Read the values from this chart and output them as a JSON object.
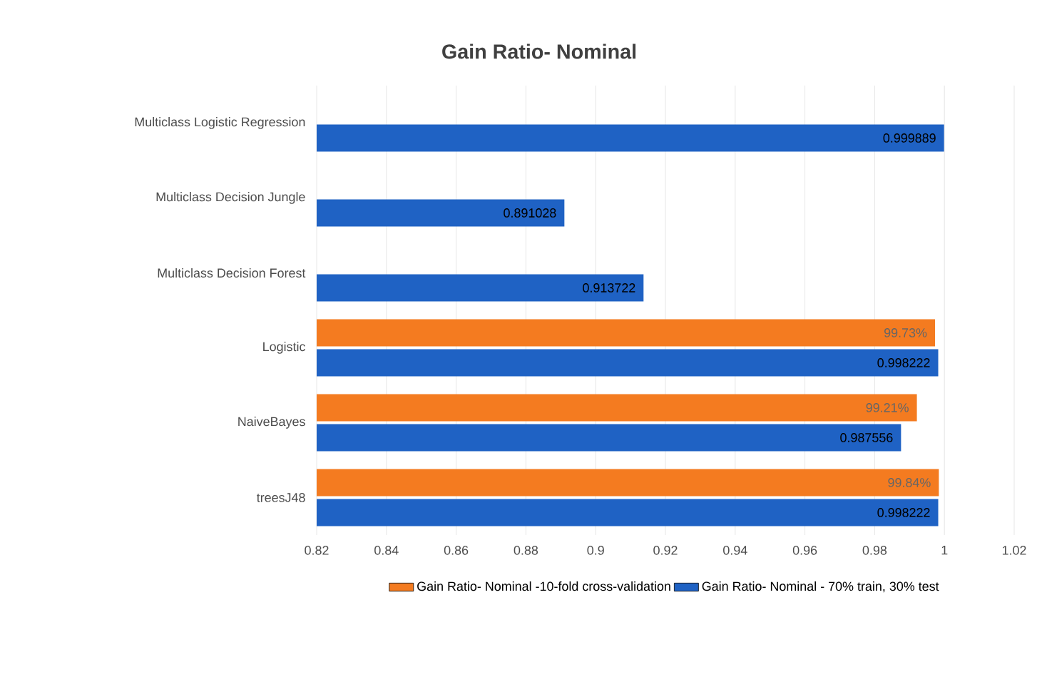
{
  "chart_data": {
    "type": "bar",
    "orientation": "horizontal",
    "title": "Gain Ratio- Nominal",
    "categories": [
      "Multiclass Logistic Regression",
      "Multiclass Decision Jungle",
      "Multiclass Decision Forest",
      "Logistic",
      "NaiveBayes",
      "treesJ48"
    ],
    "series": [
      {
        "name": "Gain Ratio- Nominal -10-fold cross-validation",
        "color": "#f47b20",
        "values": [
          null,
          null,
          null,
          0.9973,
          0.9921,
          0.9984
        ],
        "value_labels": [
          null,
          null,
          null,
          "99.73%",
          "99.21%",
          "99.84%"
        ]
      },
      {
        "name": "Gain Ratio- Nominal - 70% train, 30% test",
        "color": "#1f62c4",
        "values": [
          0.999889,
          0.891028,
          0.913722,
          0.998222,
          0.987556,
          0.998222
        ],
        "value_labels": [
          "0.999889",
          "0.891028",
          "0.913722",
          "0.998222",
          "0.987556",
          "0.998222"
        ]
      }
    ],
    "xlim": [
      0.82,
      1.02
    ],
    "xticks": [
      0.82,
      0.84,
      0.86,
      0.88,
      0.9,
      0.92,
      0.94,
      0.96,
      0.98,
      1,
      1.02
    ],
    "grid": "x",
    "legend": "bottom"
  }
}
